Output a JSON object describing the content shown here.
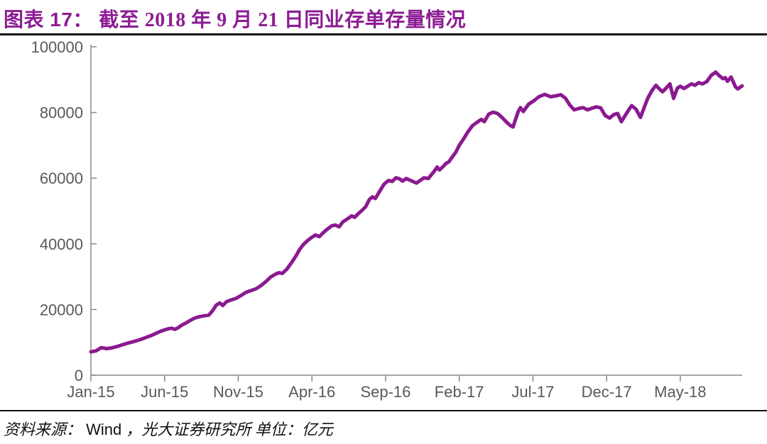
{
  "figure": {
    "label": "图表 17：",
    "title_text": "截至 2018 年 9 月 21 日同业存单存量情况"
  },
  "source": {
    "prefix": "资料来源：",
    "vendor": "Wind",
    "suffix": "，光大证券研究所  单位：亿元"
  },
  "colors": {
    "accent_title": "#8B1C93",
    "line": "#8B1A90",
    "axis": "#8A8A8A",
    "tick_label": "#595959",
    "rule": "#121212"
  },
  "chart_data": {
    "type": "line",
    "title": "截至2018年9月21日同业存单存量情况",
    "unit": "亿元",
    "grid": false,
    "legend": "none",
    "ylim": [
      0,
      100000
    ],
    "yticks": [
      0,
      20000,
      40000,
      60000,
      80000,
      100000
    ],
    "x_range_months": [
      0,
      44.2
    ],
    "xticks": [
      {
        "label": "Jan-15",
        "t": 0
      },
      {
        "label": "Jun-15",
        "t": 5
      },
      {
        "label": "Nov-15",
        "t": 10
      },
      {
        "label": "Apr-16",
        "t": 15
      },
      {
        "label": "Sep-16",
        "t": 20
      },
      {
        "label": "Feb-17",
        "t": 25
      },
      {
        "label": "Jul-17",
        "t": 30
      },
      {
        "label": "Dec-17",
        "t": 35
      },
      {
        "label": "May-18",
        "t": 40
      }
    ],
    "series": [
      {
        "name": "同业存单存量",
        "color": "#8B1A90",
        "points": [
          [
            0,
            7100
          ],
          [
            0.35,
            7400
          ],
          [
            0.7,
            8400
          ],
          [
            1.05,
            8100
          ],
          [
            1.4,
            8300
          ],
          [
            1.75,
            8700
          ],
          [
            2.1,
            9200
          ],
          [
            2.45,
            9700
          ],
          [
            2.8,
            10100
          ],
          [
            3.1,
            10500
          ],
          [
            3.45,
            11000
          ],
          [
            3.8,
            11600
          ],
          [
            4.1,
            12100
          ],
          [
            4.4,
            12700
          ],
          [
            4.7,
            13300
          ],
          [
            5,
            13800
          ],
          [
            5.3,
            14200
          ],
          [
            5.5,
            14300
          ],
          [
            5.7,
            13950
          ],
          [
            5.9,
            14400
          ],
          [
            6.15,
            15200
          ],
          [
            6.45,
            15900
          ],
          [
            6.75,
            16700
          ],
          [
            7.05,
            17400
          ],
          [
            7.35,
            17800
          ],
          [
            7.7,
            18100
          ],
          [
            8,
            18300
          ],
          [
            8.25,
            19600
          ],
          [
            8.5,
            21300
          ],
          [
            8.75,
            22000
          ],
          [
            8.95,
            21200
          ],
          [
            9.2,
            22400
          ],
          [
            9.5,
            22900
          ],
          [
            9.85,
            23400
          ],
          [
            10.2,
            24300
          ],
          [
            10.55,
            25300
          ],
          [
            10.9,
            25800
          ],
          [
            11.2,
            26300
          ],
          [
            11.55,
            27300
          ],
          [
            11.9,
            28600
          ],
          [
            12.2,
            29900
          ],
          [
            12.5,
            30700
          ],
          [
            12.75,
            31200
          ],
          [
            13,
            31000
          ],
          [
            13.3,
            32300
          ],
          [
            13.6,
            34200
          ],
          [
            13.9,
            36200
          ],
          [
            14.15,
            38200
          ],
          [
            14.4,
            39700
          ],
          [
            14.7,
            41000
          ],
          [
            15,
            42000
          ],
          [
            15.25,
            42700
          ],
          [
            15.5,
            42200
          ],
          [
            15.75,
            43300
          ],
          [
            16,
            44300
          ],
          [
            16.35,
            45500
          ],
          [
            16.6,
            45700
          ],
          [
            16.85,
            45200
          ],
          [
            17.1,
            46700
          ],
          [
            17.35,
            47400
          ],
          [
            17.7,
            48500
          ],
          [
            17.9,
            48100
          ],
          [
            18.15,
            49200
          ],
          [
            18.4,
            50200
          ],
          [
            18.65,
            51300
          ],
          [
            18.9,
            53500
          ],
          [
            19.1,
            54300
          ],
          [
            19.3,
            53800
          ],
          [
            19.6,
            56000
          ],
          [
            19.9,
            58200
          ],
          [
            20.2,
            59300
          ],
          [
            20.45,
            59000
          ],
          [
            20.7,
            60100
          ],
          [
            20.95,
            59800
          ],
          [
            21.15,
            59100
          ],
          [
            21.4,
            59900
          ],
          [
            21.65,
            59400
          ],
          [
            21.85,
            59000
          ],
          [
            22.1,
            58500
          ],
          [
            22.35,
            59300
          ],
          [
            22.6,
            60100
          ],
          [
            22.9,
            59900
          ],
          [
            23.1,
            61000
          ],
          [
            23.3,
            62100
          ],
          [
            23.5,
            63400
          ],
          [
            23.65,
            62500
          ],
          [
            23.9,
            63500
          ],
          [
            24.1,
            64500
          ],
          [
            24.3,
            65000
          ],
          [
            24.5,
            66300
          ],
          [
            24.75,
            67800
          ],
          [
            25,
            70000
          ],
          [
            25.3,
            72000
          ],
          [
            25.6,
            74200
          ],
          [
            25.9,
            76000
          ],
          [
            26.2,
            77000
          ],
          [
            26.5,
            77900
          ],
          [
            26.7,
            77200
          ],
          [
            27,
            79500
          ],
          [
            27.3,
            80100
          ],
          [
            27.6,
            79700
          ],
          [
            27.9,
            78500
          ],
          [
            28.2,
            77100
          ],
          [
            28.45,
            76100
          ],
          [
            28.65,
            75600
          ],
          [
            29,
            80300
          ],
          [
            29.15,
            81500
          ],
          [
            29.35,
            80300
          ],
          [
            29.7,
            82500
          ],
          [
            30.1,
            83700
          ],
          [
            30.4,
            84800
          ],
          [
            30.8,
            85500
          ],
          [
            31.2,
            84800
          ],
          [
            31.5,
            85000
          ],
          [
            31.9,
            85400
          ],
          [
            32.2,
            84400
          ],
          [
            32.5,
            82300
          ],
          [
            32.8,
            80800
          ],
          [
            33.1,
            81200
          ],
          [
            33.4,
            81500
          ],
          [
            33.7,
            80800
          ],
          [
            34,
            81300
          ],
          [
            34.3,
            81700
          ],
          [
            34.6,
            81400
          ],
          [
            34.9,
            79100
          ],
          [
            35.2,
            78300
          ],
          [
            35.5,
            79400
          ],
          [
            35.75,
            79700
          ],
          [
            36,
            77200
          ],
          [
            36.25,
            79000
          ],
          [
            36.5,
            80800
          ],
          [
            36.7,
            82100
          ],
          [
            37,
            81000
          ],
          [
            37.3,
            78500
          ],
          [
            37.55,
            81500
          ],
          [
            37.8,
            84400
          ],
          [
            38.1,
            86800
          ],
          [
            38.35,
            88300
          ],
          [
            38.6,
            87100
          ],
          [
            38.8,
            86300
          ],
          [
            39.1,
            87700
          ],
          [
            39.3,
            88700
          ],
          [
            39.55,
            84300
          ],
          [
            39.8,
            87400
          ],
          [
            40,
            88000
          ],
          [
            40.25,
            87300
          ],
          [
            40.5,
            88000
          ],
          [
            40.75,
            88700
          ],
          [
            41,
            88300
          ],
          [
            41.25,
            89100
          ],
          [
            41.5,
            88700
          ],
          [
            41.8,
            89400
          ],
          [
            42.1,
            91300
          ],
          [
            42.4,
            92300
          ],
          [
            42.65,
            91200
          ],
          [
            42.9,
            90300
          ],
          [
            43.05,
            90600
          ],
          [
            43.2,
            89500
          ],
          [
            43.45,
            90800
          ],
          [
            43.75,
            87800
          ],
          [
            43.9,
            87200
          ],
          [
            44.2,
            88100
          ]
        ]
      }
    ]
  }
}
